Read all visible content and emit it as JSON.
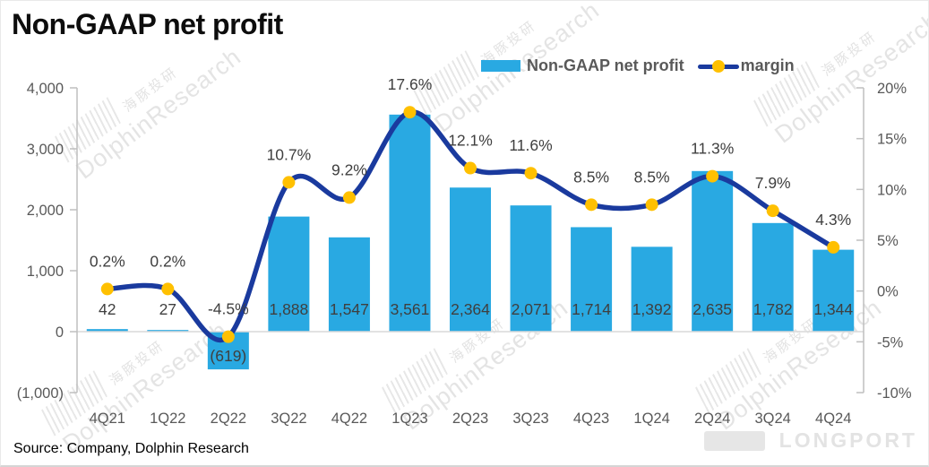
{
  "title": "Non-GAAP net profit",
  "source": "Source: Company, Dolphin Research",
  "legend": {
    "bar_label": "Non-GAAP net profit",
    "line_label": "margin"
  },
  "watermark": {
    "cn": "海豚投研",
    "en": "DolphinResearch",
    "logo": "LONGPORT"
  },
  "colors": {
    "bar": "#29a9e2",
    "line": "#1a3a9e",
    "marker": "#ffc000",
    "axis_line": "#bfbfbf",
    "zero_line": "#d9d9d9",
    "tick_label": "#595959",
    "data_label": "#3f3f3f",
    "legend_text": "#595959"
  },
  "chart_data": {
    "type": "bar",
    "subtype": "bar-line-combo",
    "title": "Non-GAAP net profit",
    "categories": [
      "4Q21",
      "1Q22",
      "2Q22",
      "3Q22",
      "4Q22",
      "1Q23",
      "2Q23",
      "3Q23",
      "4Q23",
      "1Q24",
      "2Q24",
      "3Q24",
      "4Q24"
    ],
    "series": [
      {
        "name": "Non-GAAP net profit",
        "type": "bar",
        "axis": "left",
        "values": [
          42,
          27,
          -619,
          1888,
          1547,
          3561,
          2364,
          2071,
          1714,
          1392,
          2635,
          1782,
          1344
        ],
        "labels": [
          "42",
          "27",
          "(619)",
          "1,888",
          "1,547",
          "3,561",
          "2,364",
          "2,071",
          "1,714",
          "1,392",
          "2,635",
          "1,782",
          "1,344"
        ]
      },
      {
        "name": "margin",
        "type": "line",
        "axis": "right",
        "values": [
          0.2,
          0.2,
          -4.5,
          10.7,
          9.2,
          17.6,
          12.1,
          11.6,
          8.5,
          8.5,
          11.3,
          7.9,
          4.3
        ],
        "labels": [
          "0.2%",
          "0.2%",
          "-4.5%",
          "10.7%",
          "9.2%",
          "17.6%",
          "12.1%",
          "11.6%",
          "8.5%",
          "8.5%",
          "11.3%",
          "7.9%",
          "4.3%"
        ]
      }
    ],
    "left_axis": {
      "range": [
        -1000,
        4000
      ],
      "ticks": [
        4000,
        3000,
        2000,
        1000,
        0,
        -1000
      ],
      "tick_labels": [
        "4,000",
        "3,000",
        "2,000",
        "1,000",
        "0",
        "(1,000)"
      ]
    },
    "right_axis": {
      "range": [
        -10,
        20
      ],
      "ticks": [
        20,
        15,
        10,
        5,
        0,
        -5,
        -10
      ],
      "tick_labels": [
        "20%",
        "15%",
        "10%",
        "5%",
        "0%",
        "-5%",
        "-10%"
      ]
    },
    "grid": false,
    "legend_position": "top-right"
  }
}
